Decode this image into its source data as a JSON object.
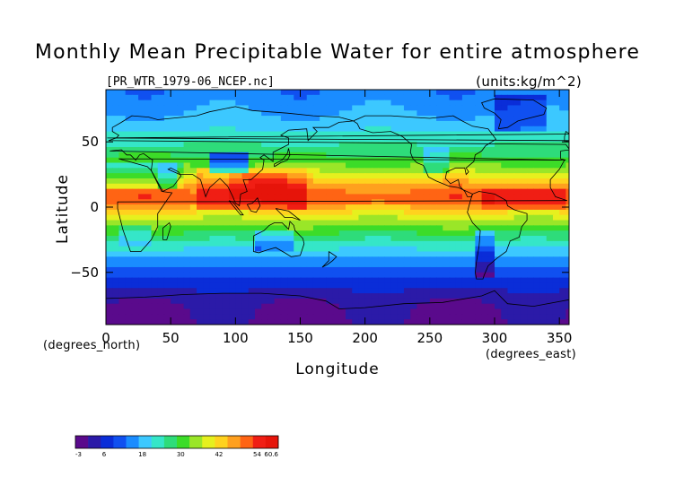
{
  "chart_data": {
    "type": "heatmap",
    "title": "Monthly Mean Precipitable Water for entire atmosphere",
    "file_label": "[PR_WTR_1979-06_NCEP.nc]",
    "units_label": "(units:kg/m^2)",
    "xlabel": "Longitude",
    "ylabel": "Latitude",
    "x_units": "(degrees_east)",
    "y_units": "(degrees_north)",
    "xlim": [
      0,
      357.5
    ],
    "ylim": [
      -90,
      90
    ],
    "x_ticks": [
      0,
      50,
      100,
      150,
      200,
      250,
      300,
      350
    ],
    "x_tick_labels": [
      "0",
      "50",
      "100",
      "150",
      "200",
      "250",
      "300",
      "350"
    ],
    "y_ticks": [
      50,
      0,
      -50
    ],
    "y_tick_labels": [
      "50",
      "0",
      "−50"
    ],
    "colorbar": {
      "min": -3,
      "max": 60.6,
      "tick_values": [
        -3,
        6,
        18,
        30,
        42,
        54,
        60.6
      ],
      "tick_labels": [
        "-3",
        "6",
        "18",
        "30",
        "42",
        "54",
        "60.6"
      ],
      "colors": [
        "#5a0a8c",
        "#2b1aa8",
        "#0a2dd8",
        "#1050f0",
        "#1a8cff",
        "#3cc8ff",
        "#35e6c8",
        "#2edc7a",
        "#3cdc28",
        "#9ae628",
        "#e6f01e",
        "#ffd21e",
        "#ffa01e",
        "#ff6414",
        "#f01e14",
        "#e6140a"
      ]
    },
    "latitude_profile": [
      {
        "lat": 90,
        "value": 14
      },
      {
        "lat": 75,
        "value": 16
      },
      {
        "lat": 60,
        "value": 20
      },
      {
        "lat": 45,
        "value": 26
      },
      {
        "lat": 30,
        "value": 34
      },
      {
        "lat": 15,
        "value": 48
      },
      {
        "lat": 5,
        "value": 52
      },
      {
        "lat": 0,
        "value": 45
      },
      {
        "lat": -15,
        "value": 32
      },
      {
        "lat": -30,
        "value": 22
      },
      {
        "lat": -45,
        "value": 13
      },
      {
        "lat": -55,
        "value": 8
      },
      {
        "lat": -65,
        "value": 4
      },
      {
        "lat": -75,
        "value": 1
      },
      {
        "lat": -90,
        "value": 0
      }
    ]
  }
}
